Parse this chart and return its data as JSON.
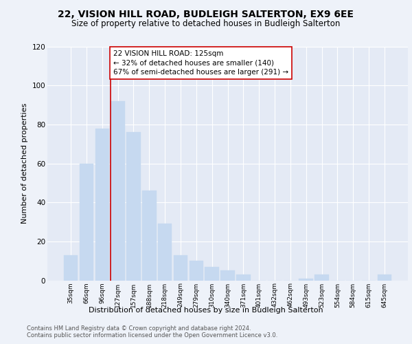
{
  "title": "22, VISION HILL ROAD, BUDLEIGH SALTERTON, EX9 6EE",
  "subtitle": "Size of property relative to detached houses in Budleigh Salterton",
  "xlabel": "Distribution of detached houses by size in Budleigh Salterton",
  "ylabel": "Number of detached properties",
  "footer_line1": "Contains HM Land Registry data © Crown copyright and database right 2024.",
  "footer_line2": "Contains public sector information licensed under the Open Government Licence v3.0.",
  "categories": [
    "35sqm",
    "66sqm",
    "96sqm",
    "127sqm",
    "157sqm",
    "188sqm",
    "218sqm",
    "249sqm",
    "279sqm",
    "310sqm",
    "340sqm",
    "371sqm",
    "401sqm",
    "432sqm",
    "462sqm",
    "493sqm",
    "523sqm",
    "554sqm",
    "584sqm",
    "615sqm",
    "645sqm"
  ],
  "values": [
    13,
    60,
    78,
    92,
    76,
    46,
    29,
    13,
    10,
    7,
    5,
    3,
    0,
    0,
    0,
    1,
    3,
    0,
    0,
    0,
    3
  ],
  "highlight_index": 3,
  "bar_color": "#c6d9f0",
  "marker_line_color": "#cc0000",
  "annotation_box_text": "22 VISION HILL ROAD: 125sqm\n← 32% of detached houses are smaller (140)\n67% of semi-detached houses are larger (291) →",
  "ylim": [
    0,
    120
  ],
  "yticks": [
    0,
    20,
    40,
    60,
    80,
    100,
    120
  ],
  "background_color": "#eef2f9",
  "plot_bg_color": "#e4eaf5",
  "grid_color": "#ffffff",
  "title_fontsize": 10,
  "subtitle_fontsize": 8.5,
  "ylabel_fontsize": 8,
  "xtick_fontsize": 6.5,
  "ytick_fontsize": 7.5,
  "ann_fontsize": 7.5
}
